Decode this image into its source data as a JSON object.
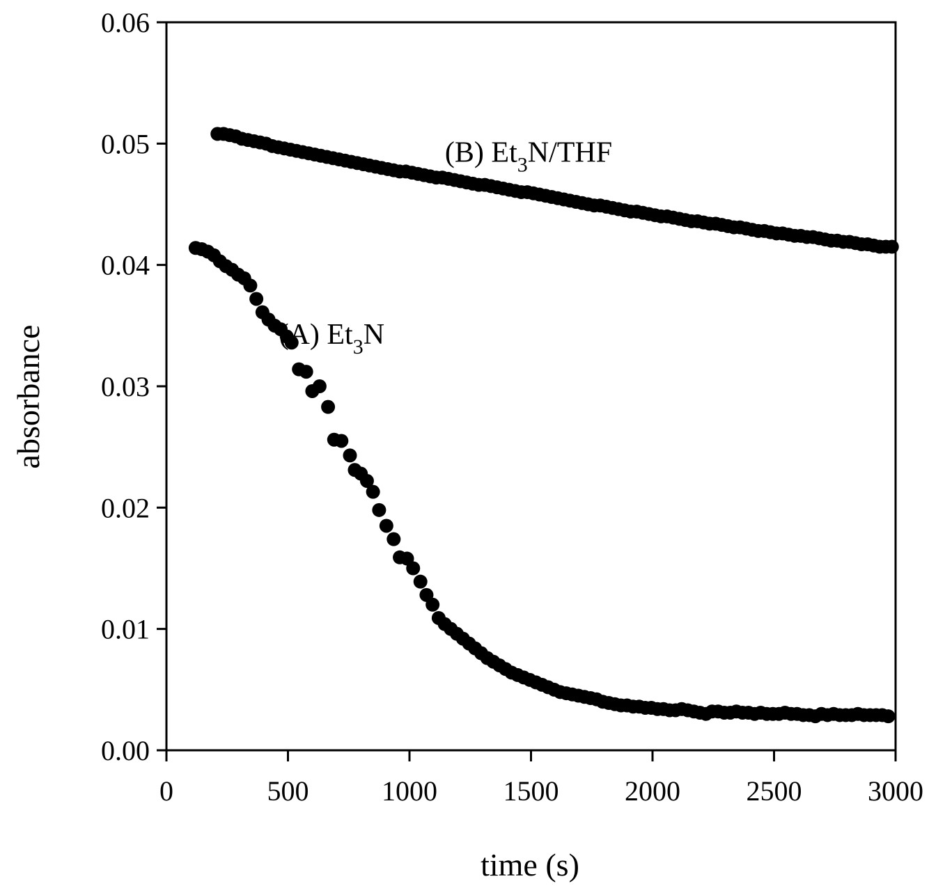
{
  "chart_data": {
    "type": "scatter",
    "title": "",
    "xlabel": "time (s)",
    "ylabel": "absorbance",
    "xlim": [
      0,
      3000
    ],
    "ylim": [
      0,
      0.06
    ],
    "grid": false,
    "marker_color": "#000000",
    "x_ticks": [
      {
        "value": 0,
        "label": "0"
      },
      {
        "value": 500,
        "label": "500"
      },
      {
        "value": 1000,
        "label": "1000"
      },
      {
        "value": 1500,
        "label": "1500"
      },
      {
        "value": 2000,
        "label": "2000"
      },
      {
        "value": 2500,
        "label": "2500"
      },
      {
        "value": 3000,
        "label": "3000"
      }
    ],
    "y_ticks": [
      {
        "value": 0,
        "label": "0.00"
      },
      {
        "value": 0.01,
        "label": "0.01"
      },
      {
        "value": 0.02,
        "label": "0.02"
      },
      {
        "value": 0.03,
        "label": "0.03"
      },
      {
        "value": 0.04,
        "label": "0.04"
      },
      {
        "value": 0.05,
        "label": "0.05"
      },
      {
        "value": 0.06,
        "label": "0.06"
      }
    ],
    "series": [
      {
        "name": "(A) Et3N",
        "label_main": "(A) Et",
        "label_sub": "3",
        "label_tail": "N",
        "label_anchor": [
          680,
          0.0335
        ],
        "points": [
          [
            120,
            0.0414
          ],
          [
            145,
            0.0413
          ],
          [
            170,
            0.0411
          ],
          [
            195,
            0.0408
          ],
          [
            220,
            0.0403
          ],
          [
            245,
            0.0399
          ],
          [
            270,
            0.0396
          ],
          [
            295,
            0.0392
          ],
          [
            320,
            0.0389
          ],
          [
            345,
            0.0383
          ],
          [
            370,
            0.0372
          ],
          [
            395,
            0.0361
          ],
          [
            420,
            0.0355
          ],
          [
            445,
            0.035
          ],
          [
            470,
            0.0347
          ],
          [
            495,
            0.0341
          ],
          [
            515,
            0.0336
          ],
          [
            545,
            0.0314
          ],
          [
            575,
            0.0312
          ],
          [
            600,
            0.0296
          ],
          [
            630,
            0.03
          ],
          [
            665,
            0.0283
          ],
          [
            690,
            0.0256
          ],
          [
            720,
            0.0255
          ],
          [
            755,
            0.0243
          ],
          [
            775,
            0.0231
          ],
          [
            800,
            0.0228
          ],
          [
            825,
            0.0222
          ],
          [
            850,
            0.0213
          ],
          [
            875,
            0.0198
          ],
          [
            905,
            0.0185
          ],
          [
            935,
            0.0174
          ],
          [
            960,
            0.0159
          ],
          [
            990,
            0.0158
          ],
          [
            1015,
            0.015
          ],
          [
            1045,
            0.0139
          ],
          [
            1070,
            0.0128
          ],
          [
            1095,
            0.012
          ],
          [
            1120,
            0.0109
          ],
          [
            1145,
            0.0104
          ],
          [
            1170,
            0.01
          ],
          [
            1195,
            0.0096
          ],
          [
            1220,
            0.0092
          ],
          [
            1245,
            0.0088
          ],
          [
            1270,
            0.0084
          ],
          [
            1295,
            0.008
          ],
          [
            1320,
            0.0076
          ],
          [
            1345,
            0.0073
          ],
          [
            1370,
            0.007
          ],
          [
            1395,
            0.0067
          ],
          [
            1420,
            0.0064
          ],
          [
            1445,
            0.0062
          ],
          [
            1470,
            0.006
          ],
          [
            1495,
            0.0058
          ],
          [
            1520,
            0.0056
          ],
          [
            1545,
            0.0054
          ],
          [
            1570,
            0.0052
          ],
          [
            1595,
            0.005
          ],
          [
            1620,
            0.0048
          ],
          [
            1645,
            0.0047
          ],
          [
            1670,
            0.0046
          ],
          [
            1695,
            0.0045
          ],
          [
            1720,
            0.0044
          ],
          [
            1745,
            0.0043
          ],
          [
            1770,
            0.0042
          ],
          [
            1795,
            0.004
          ],
          [
            1820,
            0.0039
          ],
          [
            1845,
            0.0038
          ],
          [
            1870,
            0.0037
          ],
          [
            1895,
            0.0037
          ],
          [
            1920,
            0.0036
          ],
          [
            1945,
            0.0036
          ],
          [
            1970,
            0.0035
          ],
          [
            1995,
            0.0035
          ],
          [
            2020,
            0.0034
          ],
          [
            2045,
            0.0034
          ],
          [
            2070,
            0.0033
          ],
          [
            2095,
            0.0033
          ],
          [
            2120,
            0.0034
          ],
          [
            2145,
            0.0033
          ],
          [
            2170,
            0.0032
          ],
          [
            2195,
            0.0031
          ],
          [
            2220,
            0.003
          ],
          [
            2245,
            0.0032
          ],
          [
            2270,
            0.0032
          ],
          [
            2295,
            0.0031
          ],
          [
            2320,
            0.0031
          ],
          [
            2345,
            0.0032
          ],
          [
            2370,
            0.0031
          ],
          [
            2395,
            0.0031
          ],
          [
            2420,
            0.003
          ],
          [
            2445,
            0.0031
          ],
          [
            2470,
            0.003
          ],
          [
            2495,
            0.003
          ],
          [
            2520,
            0.003
          ],
          [
            2545,
            0.0031
          ],
          [
            2570,
            0.003
          ],
          [
            2595,
            0.003
          ],
          [
            2620,
            0.0029
          ],
          [
            2645,
            0.0029
          ],
          [
            2670,
            0.0028
          ],
          [
            2695,
            0.003
          ],
          [
            2720,
            0.0029
          ],
          [
            2745,
            0.003
          ],
          [
            2770,
            0.0029
          ],
          [
            2795,
            0.0029
          ],
          [
            2820,
            0.0029
          ],
          [
            2845,
            0.003
          ],
          [
            2870,
            0.0029
          ],
          [
            2895,
            0.0029
          ],
          [
            2920,
            0.0029
          ],
          [
            2945,
            0.0029
          ],
          [
            2970,
            0.0028
          ]
        ]
      },
      {
        "name": "(B) Et3N/THF",
        "label_main": "(B) Et",
        "label_sub": "3",
        "label_tail": "N/THF",
        "label_anchor": [
          1490,
          0.0485
        ],
        "points": [
          [
            210,
            0.0508
          ],
          [
            235,
            0.0508
          ],
          [
            260,
            0.0507
          ],
          [
            285,
            0.0506
          ],
          [
            310,
            0.0504
          ],
          [
            335,
            0.0503
          ],
          [
            360,
            0.0502
          ],
          [
            385,
            0.0501
          ],
          [
            410,
            0.05
          ],
          [
            435,
            0.0498
          ],
          [
            460,
            0.0497
          ],
          [
            485,
            0.0496
          ],
          [
            510,
            0.0495
          ],
          [
            535,
            0.0494
          ],
          [
            560,
            0.0493
          ],
          [
            585,
            0.0492
          ],
          [
            610,
            0.0491
          ],
          [
            635,
            0.049
          ],
          [
            660,
            0.0489
          ],
          [
            685,
            0.0488
          ],
          [
            710,
            0.0487
          ],
          [
            735,
            0.0486
          ],
          [
            760,
            0.0485
          ],
          [
            785,
            0.0484
          ],
          [
            810,
            0.0483
          ],
          [
            835,
            0.0482
          ],
          [
            860,
            0.0481
          ],
          [
            885,
            0.048
          ],
          [
            910,
            0.0479
          ],
          [
            935,
            0.0478
          ],
          [
            960,
            0.0477
          ],
          [
            985,
            0.0477
          ],
          [
            1010,
            0.0476
          ],
          [
            1035,
            0.0475
          ],
          [
            1060,
            0.0474
          ],
          [
            1085,
            0.0473
          ],
          [
            1110,
            0.0472
          ],
          [
            1135,
            0.0472
          ],
          [
            1160,
            0.0471
          ],
          [
            1185,
            0.047
          ],
          [
            1210,
            0.0469
          ],
          [
            1235,
            0.0468
          ],
          [
            1260,
            0.0467
          ],
          [
            1285,
            0.0466
          ],
          [
            1310,
            0.0466
          ],
          [
            1335,
            0.0465
          ],
          [
            1360,
            0.0464
          ],
          [
            1385,
            0.0463
          ],
          [
            1410,
            0.0462
          ],
          [
            1435,
            0.0461
          ],
          [
            1460,
            0.046
          ],
          [
            1485,
            0.046
          ],
          [
            1510,
            0.0459
          ],
          [
            1535,
            0.0458
          ],
          [
            1560,
            0.0457
          ],
          [
            1585,
            0.0456
          ],
          [
            1610,
            0.0455
          ],
          [
            1635,
            0.0454
          ],
          [
            1660,
            0.0453
          ],
          [
            1685,
            0.0452
          ],
          [
            1710,
            0.0451
          ],
          [
            1735,
            0.045
          ],
          [
            1760,
            0.0449
          ],
          [
            1785,
            0.0449
          ],
          [
            1810,
            0.0448
          ],
          [
            1835,
            0.0447
          ],
          [
            1860,
            0.0446
          ],
          [
            1885,
            0.0445
          ],
          [
            1910,
            0.0444
          ],
          [
            1935,
            0.0444
          ],
          [
            1960,
            0.0443
          ],
          [
            1985,
            0.0442
          ],
          [
            2010,
            0.0441
          ],
          [
            2035,
            0.044
          ],
          [
            2060,
            0.044
          ],
          [
            2085,
            0.0439
          ],
          [
            2110,
            0.0438
          ],
          [
            2135,
            0.0437
          ],
          [
            2160,
            0.0436
          ],
          [
            2185,
            0.0436
          ],
          [
            2210,
            0.0435
          ],
          [
            2235,
            0.0434
          ],
          [
            2260,
            0.0434
          ],
          [
            2285,
            0.0433
          ],
          [
            2310,
            0.0432
          ],
          [
            2335,
            0.0431
          ],
          [
            2360,
            0.0431
          ],
          [
            2385,
            0.043
          ],
          [
            2410,
            0.0429
          ],
          [
            2435,
            0.0428
          ],
          [
            2460,
            0.0428
          ],
          [
            2485,
            0.0427
          ],
          [
            2510,
            0.0426
          ],
          [
            2535,
            0.0426
          ],
          [
            2560,
            0.0425
          ],
          [
            2585,
            0.0424
          ],
          [
            2610,
            0.0424
          ],
          [
            2635,
            0.0423
          ],
          [
            2660,
            0.0423
          ],
          [
            2685,
            0.0422
          ],
          [
            2710,
            0.0421
          ],
          [
            2735,
            0.042
          ],
          [
            2760,
            0.042
          ],
          [
            2785,
            0.0419
          ],
          [
            2810,
            0.0419
          ],
          [
            2835,
            0.0418
          ],
          [
            2860,
            0.0417
          ],
          [
            2885,
            0.0417
          ],
          [
            2910,
            0.0416
          ],
          [
            2935,
            0.0415
          ],
          [
            2960,
            0.0415
          ],
          [
            2985,
            0.0415
          ]
        ]
      }
    ]
  }
}
